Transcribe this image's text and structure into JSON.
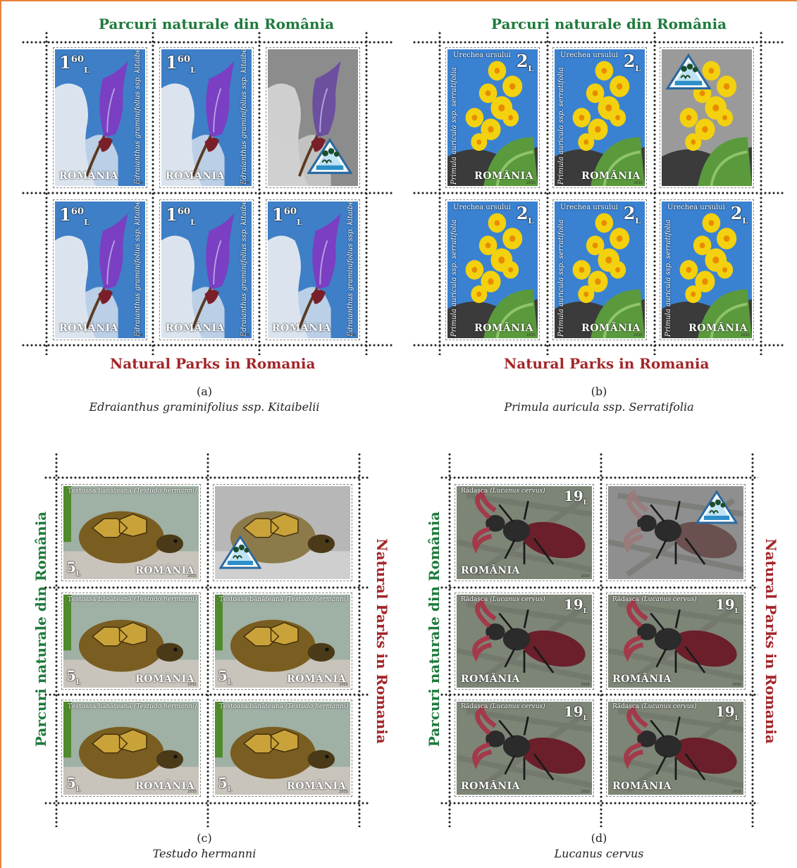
{
  "sheets": {
    "a": {
      "title_top": "Parcuri naturale din România",
      "title_bottom": "Natural Parks in Romania",
      "caption_letter": "(a)",
      "caption_name": "Edraianthus graminifolius ssp. Kitaibelii",
      "stamp_value_main": "1",
      "stamp_value_sup": "60",
      "stamp_value_sub": "L",
      "stamp_country": "ROMÂNIA",
      "stamp_latin": "Edraianthus graminifolius ssp. kitaibelii"
    },
    "b": {
      "title_top": "Parcuri naturale din România",
      "title_bottom": "Natural Parks in Romania",
      "caption_letter": "(b)",
      "caption_name": "Primula auricula ssp. Serratifolia",
      "stamp_value_main": "2",
      "stamp_value_sub": "L",
      "stamp_country": "ROMÂNIA",
      "stamp_name": "Urechea ursului",
      "stamp_latin": "Primula auricula ssp. serratifolia"
    },
    "c": {
      "title_left": "Parcuri naturale din România",
      "title_right": "Natural Parks in Romania",
      "caption_letter": "(c)",
      "caption_name": "Testudo hermanni",
      "stamp_value_main": "5",
      "stamp_value_sub": "L",
      "stamp_country": "ROMÂNIA",
      "stamp_name": "Țestoasa bănățeană",
      "stamp_name_latin": "(Testudo hermanni)"
    },
    "d": {
      "title_left": "Parcuri naturale din România",
      "title_right": "Natural Parks in Romania",
      "caption_letter": "(d)",
      "caption_name": "Lucanus cervus",
      "stamp_value_main": "19",
      "stamp_value_sub": "L",
      "stamp_country": "ROMÂNIA",
      "stamp_name": "Rădașca",
      "stamp_name_latin": "(Lucanus cervus)"
    }
  },
  "stamp_year": "2015",
  "colors": {
    "title_green": "#1e7a3c",
    "title_red": "#a3262a",
    "frame_orange": "#e8833a"
  }
}
